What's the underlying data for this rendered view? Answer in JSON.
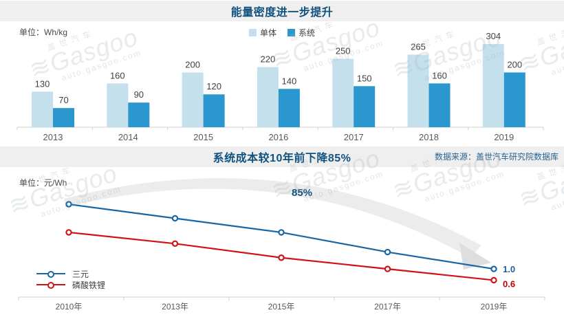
{
  "colors": {
    "band_bg": "#efefef",
    "title_navy": "#10527f",
    "bar_light": "#c4e0ed",
    "bar_dark": "#2b97cf",
    "line_blue": "#1766a5",
    "line_red": "#d01116",
    "end_label_blue": "#1b5f9e",
    "end_label_red": "#c00000",
    "axis_gray": "#cfcfcf",
    "swoosh": "#ececec",
    "swoosh_arrow": "#dedede"
  },
  "watermark": {
    "line1": "盖世汽车",
    "line2": "≋Gasgoo",
    "line3": "auto.gasgoo.com"
  },
  "top_chart": {
    "title": "能量密度进一步提升",
    "unit_label": "单位：Wh/kg",
    "legend": [
      {
        "label": "单体",
        "color": "#c4e0ed"
      },
      {
        "label": "系统",
        "color": "#2b97cf"
      }
    ]
  },
  "bottom_chart": {
    "title": "系统成本较10年前下降85%",
    "source": "数据来源：盖世汽车研究院数据库",
    "unit_label": "单位：元/Wh",
    "annotation": "85%",
    "legend": [
      {
        "label": "三元",
        "color": "#1766a5"
      },
      {
        "label": "磷酸铁锂",
        "color": "#d01116"
      }
    ]
  },
  "chart_data": [
    {
      "type": "bar",
      "title": "能量密度进一步提升",
      "unit": "Wh/kg",
      "categories": [
        "2013",
        "2014",
        "2015",
        "2016",
        "2017",
        "2018",
        "2019"
      ],
      "series": [
        {
          "name": "单体",
          "color": "#c4e0ed",
          "values": [
            130,
            160,
            200,
            220,
            250,
            265,
            304
          ]
        },
        {
          "name": "系统",
          "color": "#2b97cf",
          "values": [
            70,
            90,
            120,
            140,
            150,
            160,
            200
          ]
        }
      ],
      "ylim": [
        0,
        304
      ],
      "grid": false,
      "legend_position": "top",
      "data_labels": true
    },
    {
      "type": "line",
      "title": "系统成本较10年前下降85%",
      "unit": "元/Wh",
      "x": [
        "2010年",
        "2013年",
        "2015年",
        "2017年",
        "2019年"
      ],
      "series": [
        {
          "name": "三元",
          "color": "#1766a5",
          "values_est": [
            3.3,
            2.8,
            2.3,
            1.6,
            1.0
          ],
          "final_label": "1.0"
        },
        {
          "name": "磷酸铁锂",
          "color": "#d01116",
          "values_est": [
            2.3,
            1.9,
            1.4,
            1.0,
            0.6
          ],
          "final_label": "0.6"
        }
      ],
      "annotation": "85%",
      "grid": false,
      "legend_position": "bottom-left",
      "note": "只有2019年终点数值被标注(1.0与0.6)，其余数值按图形位置估算"
    }
  ]
}
